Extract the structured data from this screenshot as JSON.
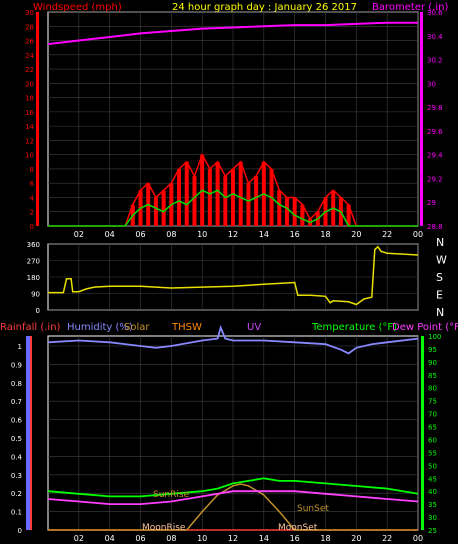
{
  "header": {
    "wind_title": "Windspeed (mph)",
    "graph_title": "24 hour graph day : January 26 2017",
    "baro_title": "Barometer (.in)"
  },
  "colors": {
    "frame": "#ffffff",
    "grid": "#404040",
    "wind": "#ff0000",
    "wind_avg": "#00dd00",
    "baro": "#ff00ff",
    "dir": "#e8e000",
    "rain": "#ff3b3b",
    "humidity": "#8888ff",
    "thsw": "#ff8800",
    "uv": "#cc44ff",
    "temp": "#00ff00",
    "dew": "#ff40ff",
    "solar": "#c0902a",
    "moon": "#ffc8a0"
  },
  "x_ticks": [
    "02",
    "04",
    "06",
    "08",
    "10",
    "12",
    "14",
    "16",
    "18",
    "20",
    "22",
    "00"
  ],
  "direction_labels": [
    "N",
    "W",
    "S",
    "E",
    "N"
  ],
  "lower_labels": {
    "rain": "Rainfall (.in)",
    "humidity": "Humidity (%)",
    "solar": "Solar",
    "thsw": "THSW",
    "uv": "UV",
    "temp": "Temperature (°F)",
    "dew": "Dew Point (°F)"
  },
  "annotations": {
    "sunrise": "SunRise",
    "sunset": "SunSet",
    "moonrise": "MoonRise",
    "moonset": "MoonSet"
  },
  "chart_data": [
    {
      "type": "line",
      "title": "24 hour graph day : January 26 2017",
      "xlabel": "",
      "x_unit": "hour",
      "xlim": [
        0,
        24
      ],
      "y_left_label": "Windspeed (mph)",
      "ylim_left": [
        0,
        30
      ],
      "yticks_left": [
        0,
        2,
        4,
        6,
        8,
        10,
        12,
        14,
        16,
        18,
        20,
        22,
        24,
        26,
        28,
        30
      ],
      "y_right_label": "Barometer (.in)",
      "ylim_right": [
        28.8,
        30.6
      ],
      "yticks_right": [
        28.8,
        29,
        29.2,
        29.4,
        29.6,
        29.8,
        30,
        30.2,
        30.4,
        30.6
      ],
      "series": [
        {
          "name": "Windspeed (mph)",
          "axis": "left",
          "x": [
            0,
            4,
            5,
            5.5,
            6,
            6.5,
            7,
            7.5,
            8,
            8.5,
            9,
            9.5,
            10,
            10.5,
            11,
            11.5,
            12,
            12.5,
            13,
            13.5,
            14,
            14.5,
            15,
            15.5,
            16,
            16.5,
            17,
            17.5,
            18,
            18.5,
            19,
            19.5,
            20,
            24
          ],
          "y": [
            0,
            0,
            0,
            3,
            5,
            6,
            4,
            5,
            6,
            8,
            9,
            7,
            10,
            8,
            9,
            7,
            8,
            9,
            6,
            7,
            9,
            8,
            5,
            4,
            4,
            3,
            1,
            2,
            4,
            5,
            4,
            3,
            0,
            0
          ]
        },
        {
          "name": "Wind avg (mph)",
          "axis": "left",
          "x": [
            0,
            5,
            5.5,
            6,
            6.5,
            7,
            7.5,
            8,
            8.5,
            9,
            9.5,
            10,
            10.5,
            11,
            11.5,
            12,
            12.5,
            13,
            13.5,
            14,
            14.5,
            15,
            15.5,
            16,
            16.5,
            17,
            17.5,
            18,
            18.5,
            19,
            19.5,
            24
          ],
          "y": [
            0,
            0,
            1.5,
            2.5,
            3,
            2.5,
            2,
            3,
            3.5,
            3,
            4,
            5,
            4.5,
            5,
            4,
            4.5,
            4,
            3.5,
            4,
            4.5,
            4,
            3,
            2.5,
            1.5,
            1,
            0.5,
            1,
            2,
            2.5,
            2,
            0,
            0
          ]
        },
        {
          "name": "Barometer (.in)",
          "axis": "right",
          "x": [
            0,
            2,
            4,
            6,
            8,
            10,
            12,
            14,
            16,
            18,
            20,
            22,
            24
          ],
          "y": [
            30.33,
            30.36,
            30.39,
            30.42,
            30.44,
            30.46,
            30.47,
            30.48,
            30.49,
            30.49,
            30.5,
            30.51,
            30.51
          ]
        }
      ]
    },
    {
      "type": "line",
      "xlim": [
        0,
        24
      ],
      "ylim": [
        0,
        360
      ],
      "yticks": [
        0,
        90,
        180,
        270,
        360
      ],
      "series": [
        {
          "name": "Wind direction",
          "x": [
            0,
            1,
            1.2,
            1.5,
            1.6,
            2,
            2.5,
            3,
            4,
            6,
            8,
            10,
            12,
            14,
            16,
            16.2,
            17,
            18,
            18.3,
            18.5,
            19.5,
            20,
            20.5,
            21,
            21.2,
            21.4,
            21.6,
            22,
            24
          ],
          "y": [
            95,
            95,
            170,
            170,
            100,
            100,
            115,
            125,
            130,
            130,
            120,
            125,
            130,
            140,
            150,
            80,
            80,
            75,
            40,
            50,
            45,
            30,
            60,
            70,
            330,
            345,
            320,
            310,
            300
          ]
        }
      ]
    },
    {
      "type": "line",
      "xlim": [
        0,
        24
      ],
      "y_left_label": "Rainfall (.in)",
      "ylim_left": [
        0,
        1
      ],
      "yticks_left": [
        0,
        0.1,
        0.2,
        0.3,
        0.4,
        0.5,
        0.6,
        0.7,
        0.8,
        0.9,
        1
      ],
      "y_right_label": "Temperature (°F)",
      "ylim_right": [
        25,
        100
      ],
      "yticks_right": [
        25,
        30,
        35,
        40,
        45,
        50,
        55,
        60,
        65,
        70,
        75,
        80,
        85,
        90,
        95,
        100
      ],
      "series": [
        {
          "name": "Humidity (%)",
          "axis": "left",
          "x": [
            0,
            2,
            4,
            6,
            7,
            8,
            10,
            11,
            11.2,
            11.5,
            12,
            14,
            16,
            18,
            19,
            19.5,
            20,
            21,
            22,
            24
          ],
          "y": [
            1.02,
            1.03,
            1.02,
            1.0,
            0.99,
            1.0,
            1.03,
            1.04,
            1.1,
            1.04,
            1.03,
            1.03,
            1.02,
            1.01,
            0.98,
            0.96,
            0.99,
            1.01,
            1.02,
            1.04
          ]
        },
        {
          "name": "Temperature (°F)",
          "axis": "right",
          "x": [
            0,
            2,
            4,
            6,
            8,
            10,
            11,
            12,
            13,
            14,
            15,
            16,
            18,
            20,
            22,
            24
          ],
          "y": [
            40,
            39,
            38,
            38,
            39,
            40,
            41,
            43,
            44,
            45,
            44,
            44,
            43,
            42,
            41,
            39
          ]
        },
        {
          "name": "Dew Point (°F)",
          "axis": "right",
          "x": [
            0,
            2,
            4,
            6,
            8,
            10,
            12,
            14,
            16,
            18,
            20,
            22,
            24
          ],
          "y": [
            37,
            36,
            35,
            35,
            36,
            38,
            40,
            40,
            40,
            39,
            38,
            37,
            36
          ]
        },
        {
          "name": "Solar",
          "axis": "left",
          "x": [
            0,
            9,
            10,
            11,
            12,
            12.5,
            13,
            14,
            15,
            16,
            17,
            24
          ],
          "y": [
            0,
            0,
            0.1,
            0.19,
            0.24,
            0.25,
            0.24,
            0.19,
            0.1,
            0,
            0,
            0
          ]
        },
        {
          "name": "Rainfall (.in)",
          "axis": "left",
          "x": [
            0,
            24
          ],
          "y": [
            0,
            0
          ]
        }
      ]
    }
  ]
}
